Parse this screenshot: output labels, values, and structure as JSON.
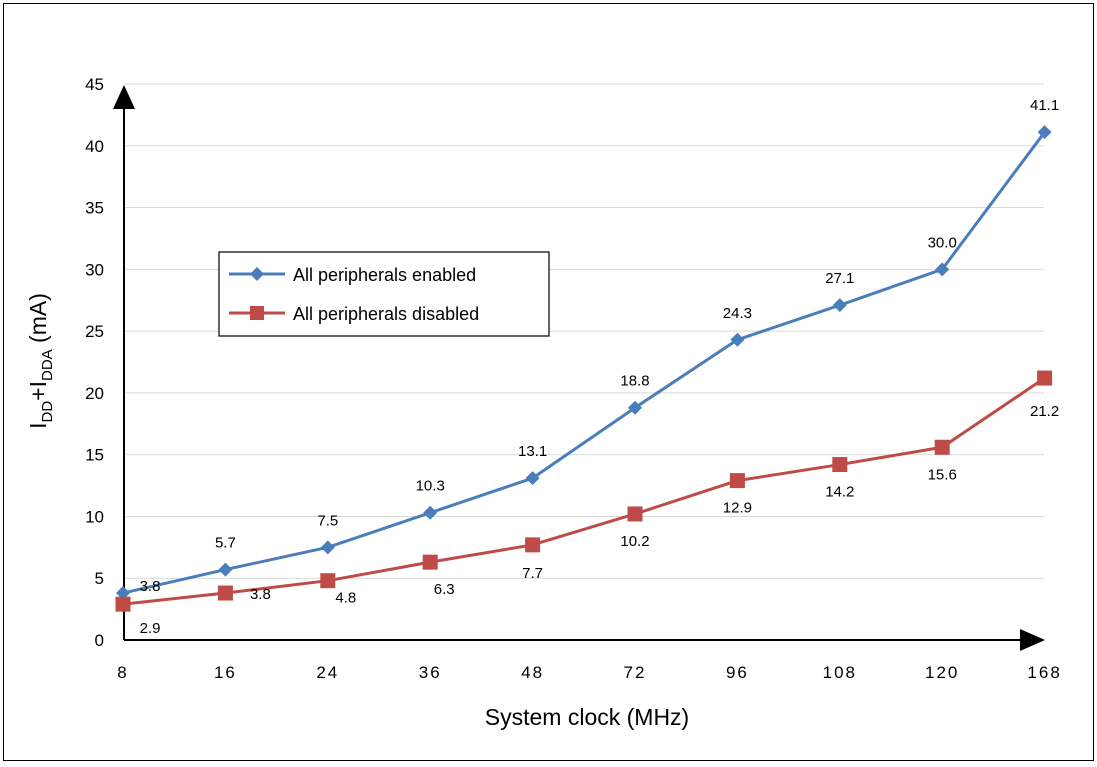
{
  "chart_data": {
    "type": "line",
    "categories": [
      "8",
      "16",
      "24",
      "36",
      "48",
      "72",
      "96",
      "108",
      "120",
      "168"
    ],
    "series": [
      {
        "name": "All peripherals enabled",
        "values": [
          3.8,
          5.7,
          7.5,
          10.3,
          13.1,
          18.8,
          24.3,
          27.1,
          30.0,
          41.1
        ],
        "labels": [
          "3.8",
          "5.7",
          "7.5",
          "10.3",
          "13.1",
          "18.8",
          "24.3",
          "27.1",
          "30.0",
          "41.1"
        ],
        "color": "#4a7ebb",
        "marker": "diamond"
      },
      {
        "name": "All peripherals disabled",
        "values": [
          2.9,
          3.8,
          4.8,
          6.3,
          7.7,
          10.2,
          12.9,
          14.2,
          15.6,
          21.2
        ],
        "labels": [
          "2.9",
          "3.8",
          "4.8",
          "6.3",
          "7.7",
          "10.2",
          "12.9",
          "14.2",
          "15.6",
          "21.2"
        ],
        "color": "#be4b48",
        "marker": "square"
      }
    ],
    "xlabel": "System clock (MHz)",
    "ylabel": {
      "base": "I",
      "sub1": "DD",
      "plus": "+I",
      "sub2": "DDA",
      "unit": " (mA)"
    },
    "ylim": [
      0,
      45
    ],
    "yticks": [
      "0",
      "5",
      "10",
      "15",
      "20",
      "25",
      "30",
      "35",
      "40",
      "45"
    ],
    "grid": true,
    "legend_position": "left-middle"
  }
}
